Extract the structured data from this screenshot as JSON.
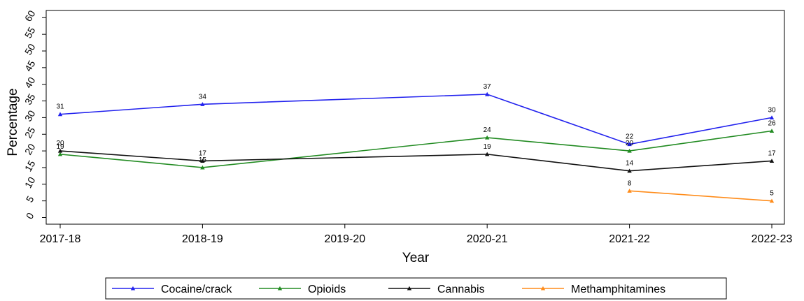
{
  "chart_data": {
    "type": "line",
    "title": "",
    "xlabel": "Year",
    "ylabel": "Percentage",
    "categories": [
      "2017-18",
      "2018-19",
      "2019-20",
      "2020-21",
      "2021-22",
      "2022-23"
    ],
    "yticks": [
      0,
      5,
      10,
      15,
      20,
      25,
      30,
      35,
      40,
      45,
      50,
      55,
      60
    ],
    "ylim": [
      0,
      62
    ],
    "grid": false,
    "legend": "bottom",
    "series": [
      {
        "name": "Cocaine/crack",
        "color": "#2222ee",
        "values": [
          31,
          34,
          null,
          37,
          22,
          30
        ],
        "labels": [
          "31",
          "34",
          null,
          "37",
          "22",
          "30"
        ]
      },
      {
        "name": "Opioids",
        "color": "#228b22",
        "values": [
          19,
          15,
          null,
          24,
          20,
          26
        ],
        "labels": [
          "19",
          "15",
          null,
          "24",
          "20",
          "26"
        ]
      },
      {
        "name": "Cannabis",
        "color": "#111111",
        "values": [
          20,
          17,
          null,
          19,
          14,
          17
        ],
        "labels": [
          "20",
          "17",
          null,
          "19",
          "14",
          "17"
        ]
      },
      {
        "name": "Methamphitamines",
        "color": "#ff8c1a",
        "values": [
          null,
          null,
          null,
          null,
          8,
          5
        ],
        "labels": [
          null,
          null,
          null,
          null,
          "8",
          "5"
        ]
      }
    ]
  }
}
